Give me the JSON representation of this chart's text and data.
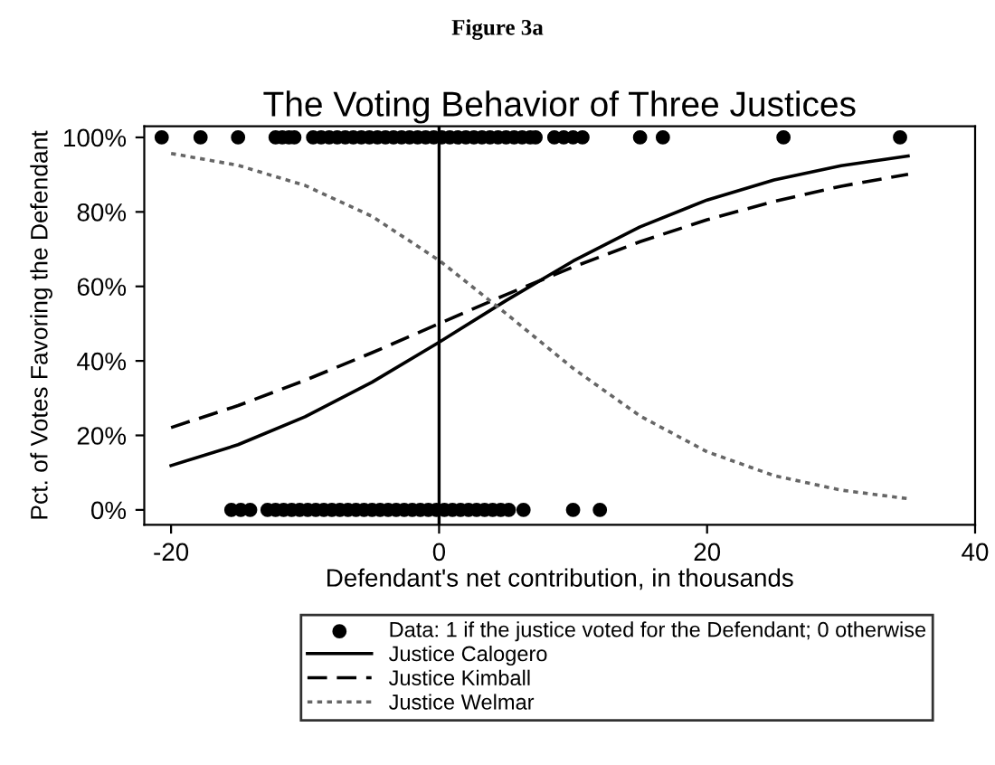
{
  "chart_data": {
    "type": "line",
    "title": "The Voting Behavior of Three Justices",
    "xlabel": "Defendant's net contribution, in thousands",
    "ylabel": "Pct. of Votes Favoring the Defendant",
    "annotations": [
      "Figure 3a"
    ],
    "xlim": [
      -22,
      40
    ],
    "xticks": [
      -20,
      0,
      20,
      40
    ],
    "ylim": [
      -4,
      103
    ],
    "yticks": [
      {
        "value": 0,
        "label": "0%"
      },
      {
        "value": 20,
        "label": "20%"
      },
      {
        "value": 40,
        "label": "40%"
      },
      {
        "value": 60,
        "label": "60%"
      },
      {
        "value": 80,
        "label": "80%"
      },
      {
        "value": 100,
        "label": "100%"
      }
    ],
    "grid": false,
    "legend": "bottom",
    "ref_lines": [
      {
        "axis": "x",
        "value": 0,
        "color": "#000000",
        "line_style": "solid"
      }
    ],
    "series": [
      {
        "name": "Data: 1 if the justice voted for the Defendant; 0 otherwise",
        "type": "scatter",
        "marker": "circle",
        "color": "#000000",
        "x": [
          -20.7,
          -17.8,
          -15,
          -12.2,
          -11.7,
          -11.2,
          -10.8,
          -9.4,
          -8.8,
          -8.2,
          -7.6,
          -7,
          -6.4,
          -5.8,
          -5.2,
          -4.6,
          -4,
          -3.4,
          -2.8,
          -2.2,
          -1.6,
          -1,
          -0.4,
          0.2,
          0.8,
          1.4,
          2,
          2.6,
          3.2,
          3.8,
          4.4,
          5,
          5.6,
          6.2,
          6.8,
          7.2,
          8.6,
          9.3,
          10,
          10.7,
          15,
          16.7,
          25.7,
          34.4,
          -15.5,
          -14.8,
          -14.1,
          -12.8,
          -12.2,
          -11.6,
          -11,
          -10.4,
          -9.8,
          -9.2,
          -8.6,
          -8,
          -7.4,
          -6.8,
          -6.2,
          -5.6,
          -5,
          -4.4,
          -3.8,
          -3.2,
          -2.6,
          -2,
          -1.4,
          -0.8,
          -0.2,
          0.4,
          1,
          1.6,
          2.2,
          2.8,
          3.4,
          4,
          4.6,
          5.2,
          6.3,
          10,
          12
        ],
        "values": [
          100,
          100,
          100,
          100,
          100,
          100,
          100,
          100,
          100,
          100,
          100,
          100,
          100,
          100,
          100,
          100,
          100,
          100,
          100,
          100,
          100,
          100,
          100,
          100,
          100,
          100,
          100,
          100,
          100,
          100,
          100,
          100,
          100,
          100,
          100,
          100,
          100,
          100,
          100,
          100,
          100,
          100,
          100,
          100,
          0,
          0,
          0,
          0,
          0,
          0,
          0,
          0,
          0,
          0,
          0,
          0,
          0,
          0,
          0,
          0,
          0,
          0,
          0,
          0,
          0,
          0,
          0,
          0,
          0,
          0,
          0,
          0,
          0,
          0,
          0,
          0,
          0,
          0,
          0,
          0,
          0
        ]
      },
      {
        "name": "Justice Calogero",
        "line_style": "solid",
        "marker": "none",
        "color": "#000000",
        "x": [
          -20,
          -15,
          -10,
          -5,
          0,
          5,
          10,
          15,
          20,
          25,
          30,
          35
        ],
        "values": [
          11.9,
          17.5,
          25.0,
          34.3,
          45.0,
          56.2,
          66.8,
          76.0,
          83.2,
          88.6,
          92.4,
          95.0
        ]
      },
      {
        "name": "Justice Kimball",
        "line_style": "dashed",
        "marker": "none",
        "color": "#000000",
        "x": [
          -20,
          -15,
          -10,
          -5,
          0,
          5,
          10,
          15,
          20,
          25,
          30,
          35
        ],
        "values": [
          22.1,
          28.0,
          34.8,
          42.2,
          50.0,
          57.8,
          65.2,
          72.0,
          77.9,
          82.8,
          86.9,
          90.1
        ]
      },
      {
        "name": "Justice Welmar",
        "line_style": "dotted",
        "marker": "none",
        "color": "#666666",
        "x": [
          -20,
          -15,
          -10,
          -5,
          0,
          5,
          10,
          15,
          20,
          25,
          30,
          35
        ],
        "values": [
          95.7,
          92.5,
          87.1,
          78.8,
          67.0,
          52.7,
          38.0,
          25.2,
          15.6,
          9.2,
          5.3,
          3.0
        ]
      }
    ]
  }
}
